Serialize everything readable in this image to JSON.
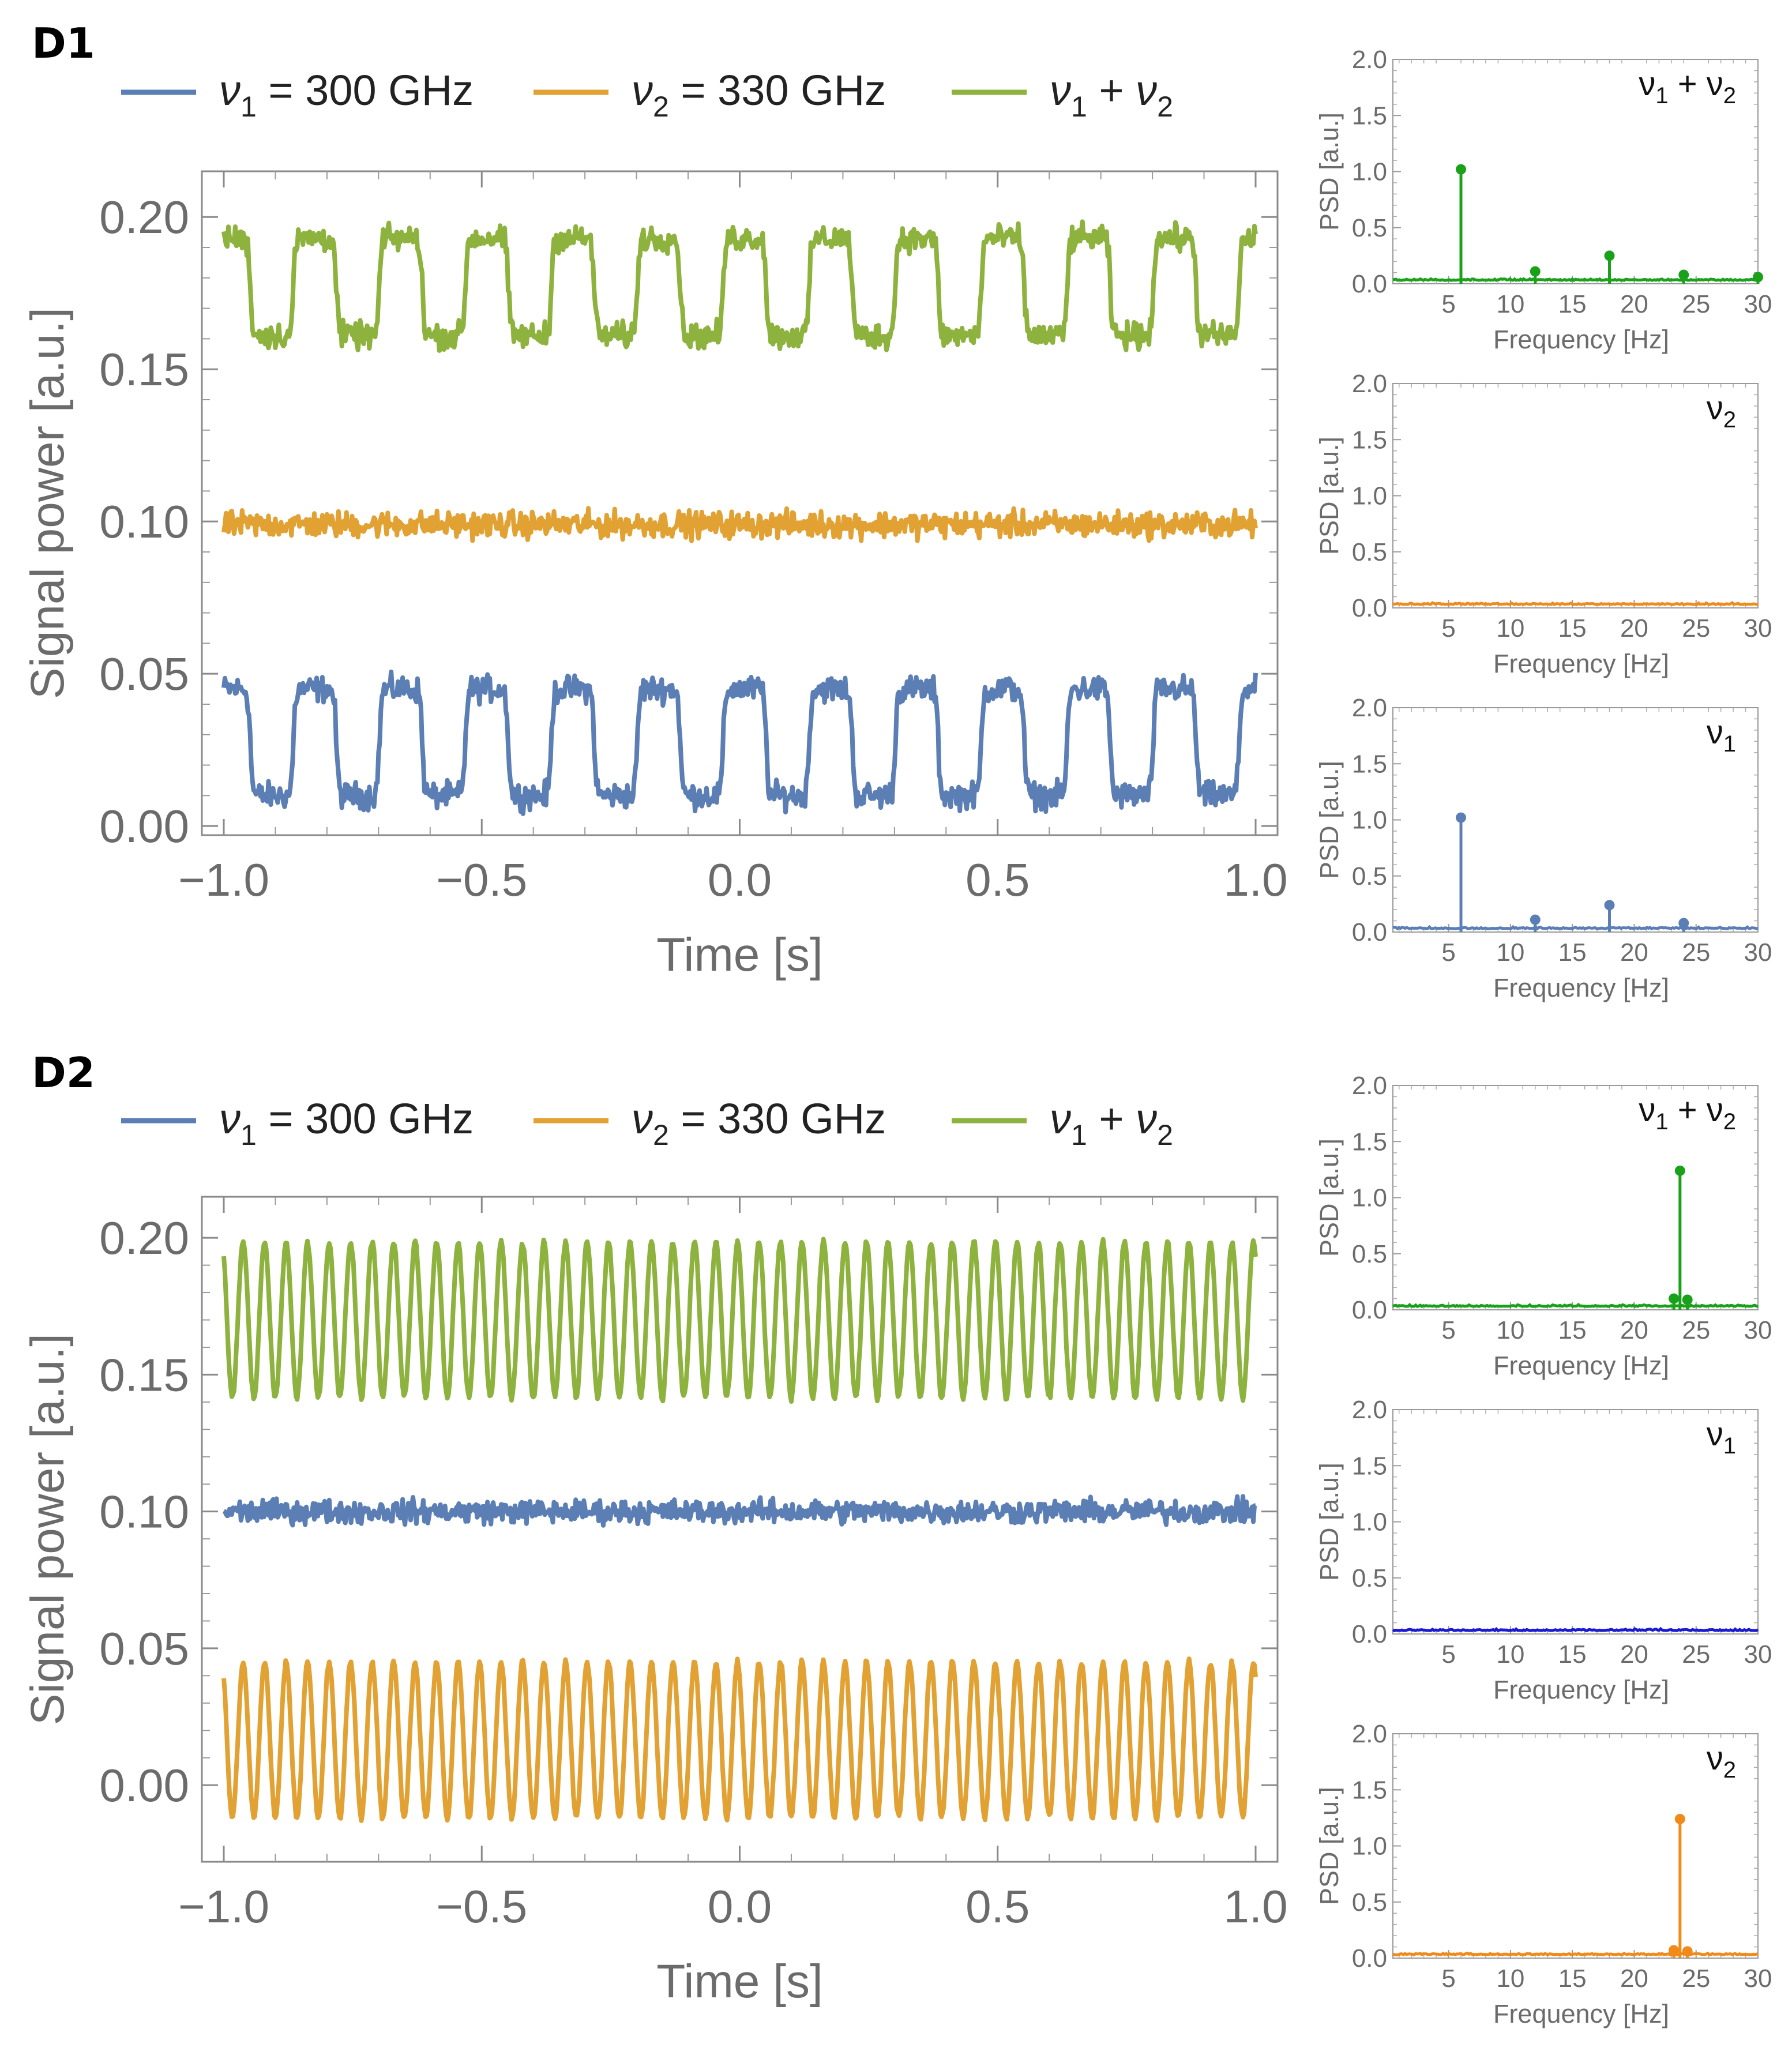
{
  "figure": {
    "panels": [
      {
        "label": "D1",
        "legend": [
          {
            "symbol": "ν",
            "sub": "1",
            "text": " = 300 GHz",
            "color": "#5b7fb5"
          },
          {
            "symbol": "ν",
            "sub": "2",
            "text": " = 330 GHz",
            "color": "#e2a133"
          },
          {
            "symbol": "ν",
            "sub": "1",
            "text2": " + ",
            "symbol2": "ν",
            "sub2": "2",
            "color": "#8db23e"
          }
        ]
      },
      {
        "label": "D2",
        "legend": [
          {
            "symbol": "ν",
            "sub": "1",
            "text": " = 300 GHz",
            "color": "#5b7fb5"
          },
          {
            "symbol": "ν",
            "sub": "2",
            "text": " = 330 GHz",
            "color": "#e2a133"
          },
          {
            "symbol": "ν",
            "sub": "1",
            "text2": " + ",
            "symbol2": "ν",
            "sub2": "2",
            "color": "#8db23e"
          }
        ]
      }
    ]
  },
  "chart_data": [
    {
      "id": "D1-time",
      "type": "line",
      "panel": "D1",
      "title": "",
      "xlabel": "Time [s]",
      "ylabel": "Signal power [a.u.]",
      "xlim": [
        -1.0,
        1.0
      ],
      "ylim": [
        -0.003,
        0.215
      ],
      "xticks": [
        -1.0,
        -0.5,
        0.0,
        0.5,
        1.0
      ],
      "xtick_labels": [
        "−1.0",
        "−0.5",
        "0.0",
        "0.5",
        "1.0"
      ],
      "yticks": [
        0.0,
        0.05,
        0.1,
        0.15,
        0.2
      ],
      "ytick_labels": [
        "0.00",
        "0.05",
        "0.10",
        "0.15",
        "0.20"
      ],
      "series": [
        {
          "name": "ν1 = 300 GHz",
          "color": "#5b7fb5",
          "waveform": "square",
          "frequency_hz": 6,
          "low": 0.01,
          "high": 0.045,
          "noise": 0.0035
        },
        {
          "name": "ν2 = 330 GHz",
          "color": "#e2a133",
          "waveform": "constant",
          "level": 0.099,
          "noise": 0.0035
        },
        {
          "name": "ν1 + ν2",
          "color": "#8db23e",
          "waveform": "square",
          "frequency_hz": 6,
          "low": 0.161,
          "high": 0.193,
          "noise": 0.0035
        }
      ]
    },
    {
      "id": "D1-psd-sum",
      "type": "stem",
      "panel": "D1",
      "label": {
        "symbol": "ν",
        "sub": "1",
        "mid": " + ",
        "symbol2": "ν",
        "sub2": "2"
      },
      "xlabel": "Frequency [Hz]",
      "ylabel": "PSD [a.u.]",
      "xlim": [
        0.5,
        30
      ],
      "ylim": [
        0,
        2.0
      ],
      "xticks": [
        5,
        10,
        15,
        20,
        25,
        30
      ],
      "yticks": [
        "0.0",
        "0.5",
        "1.0",
        "1.5",
        "2.0"
      ],
      "color": "#1aa11a",
      "baseline": 0.03,
      "stems": [
        {
          "x": 6,
          "y": 1.02
        },
        {
          "x": 12,
          "y": 0.11
        },
        {
          "x": 18,
          "y": 0.25
        },
        {
          "x": 24,
          "y": 0.08
        },
        {
          "x": 30,
          "y": 0.06
        }
      ]
    },
    {
      "id": "D1-psd-v2",
      "type": "stem",
      "panel": "D1",
      "label": {
        "symbol": "ν",
        "sub": "2"
      },
      "xlabel": "Frequency [Hz]",
      "ylabel": "PSD [a.u.]",
      "xlim": [
        0.5,
        30
      ],
      "ylim": [
        0,
        2.0
      ],
      "xticks": [
        5,
        10,
        15,
        20,
        25,
        30
      ],
      "yticks": [
        "0.0",
        "0.5",
        "1.0",
        "1.5",
        "2.0"
      ],
      "color": "#f08a1a",
      "baseline": 0.03,
      "stems": []
    },
    {
      "id": "D1-psd-v1",
      "type": "stem",
      "panel": "D1",
      "label": {
        "symbol": "ν",
        "sub": "1"
      },
      "xlabel": "Frequency [Hz]",
      "ylabel": "PSD [a.u.]",
      "xlim": [
        0.5,
        30
      ],
      "ylim": [
        0,
        2.0
      ],
      "xticks": [
        5,
        10,
        15,
        20,
        25,
        30
      ],
      "yticks": [
        "0.0",
        "0.5",
        "1.0",
        "1.5",
        "2.0"
      ],
      "color": "#5b7fb5",
      "baseline": 0.03,
      "stems": [
        {
          "x": 6,
          "y": 1.02
        },
        {
          "x": 12,
          "y": 0.11
        },
        {
          "x": 18,
          "y": 0.24
        },
        {
          "x": 24,
          "y": 0.08
        }
      ]
    },
    {
      "id": "D2-time",
      "type": "line",
      "panel": "D2",
      "title": "",
      "xlabel": "Time [s]",
      "ylabel": "Signal power [a.u.]",
      "xlim": [
        -1.0,
        1.0
      ],
      "ylim": [
        -0.028,
        0.215
      ],
      "xticks": [
        -1.0,
        -0.5,
        0.0,
        0.5,
        1.0
      ],
      "xtick_labels": [
        "−1.0",
        "−0.5",
        "0.0",
        "0.5",
        "1.0"
      ],
      "yticks": [
        0.0,
        0.05,
        0.1,
        0.15,
        0.2
      ],
      "ytick_labels": [
        "0.00",
        "0.05",
        "0.10",
        "0.15",
        "0.20"
      ],
      "series": [
        {
          "name": "ν1 = 300 GHz",
          "color": "#5b7fb5",
          "waveform": "constant",
          "level": 0.1,
          "noise": 0.0035
        },
        {
          "name": "ν2 = 330 GHz",
          "color": "#e2a133",
          "waveform": "sine",
          "frequency_hz": 24,
          "mean": 0.0165,
          "amplitude": 0.0285,
          "noise": 0.001
        },
        {
          "name": "ν1 + ν2",
          "color": "#8db23e",
          "waveform": "sine",
          "frequency_hz": 24,
          "mean": 0.17,
          "amplitude": 0.0285,
          "noise": 0.001
        }
      ]
    },
    {
      "id": "D2-psd-sum",
      "type": "stem",
      "panel": "D2",
      "label": {
        "symbol": "ν",
        "sub": "1",
        "mid": " + ",
        "symbol2": "ν",
        "sub2": "2"
      },
      "xlabel": "Frequency [Hz]",
      "ylabel": "PSD [a.u.]",
      "xlim": [
        0.5,
        30
      ],
      "ylim": [
        0,
        2.0
      ],
      "xticks": [
        5,
        10,
        15,
        20,
        25,
        30
      ],
      "yticks": [
        "0.0",
        "0.5",
        "1.0",
        "1.5",
        "2.0"
      ],
      "color": "#1aa11a",
      "baseline": 0.03,
      "stems": [
        {
          "x": 23.2,
          "y": 0.1
        },
        {
          "x": 23.7,
          "y": 1.24
        },
        {
          "x": 24.3,
          "y": 0.09
        }
      ]
    },
    {
      "id": "D2-psd-v1",
      "type": "stem",
      "panel": "D2",
      "label": {
        "symbol": "ν",
        "sub": "1"
      },
      "xlabel": "Frequency [Hz]",
      "ylabel": "PSD [a.u.]",
      "xlim": [
        0.5,
        30
      ],
      "ylim": [
        0,
        2.0
      ],
      "xticks": [
        5,
        10,
        15,
        20,
        25,
        30
      ],
      "yticks": [
        "0.0",
        "0.5",
        "1.0",
        "1.5",
        "2.0"
      ],
      "color": "#1a1ad6",
      "baseline": 0.03,
      "stems": []
    },
    {
      "id": "D2-psd-v2",
      "type": "stem",
      "panel": "D2",
      "label": {
        "symbol": "ν",
        "sub": "2"
      },
      "xlabel": "Frequency [Hz]",
      "ylabel": "PSD [a.u.]",
      "xlim": [
        0.5,
        30
      ],
      "ylim": [
        0,
        2.0
      ],
      "xticks": [
        5,
        10,
        15,
        20,
        25,
        30
      ],
      "yticks": [
        "0.0",
        "0.5",
        "1.0",
        "1.5",
        "2.0"
      ],
      "color": "#f08a1a",
      "baseline": 0.03,
      "stems": [
        {
          "x": 23.2,
          "y": 0.07
        },
        {
          "x": 23.7,
          "y": 1.24
        },
        {
          "x": 24.3,
          "y": 0.06
        }
      ]
    }
  ]
}
